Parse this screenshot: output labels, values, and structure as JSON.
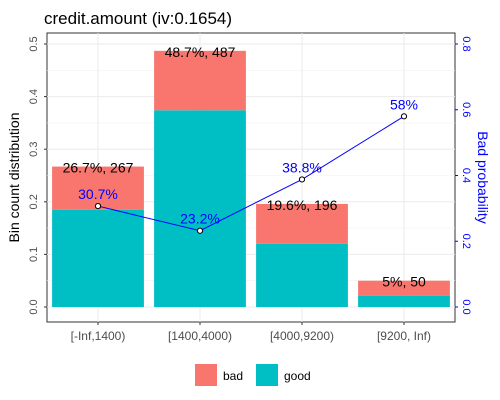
{
  "chart_data": {
    "type": "bar",
    "title": "credit.amount  (iv:0.1654)",
    "xlabel": "",
    "ylabel": "Bin count distribution",
    "y2label": "Bad probability",
    "categories": [
      "[-Inf,1400)",
      "[1400,4000)",
      "[4000,9200)",
      "[9200, Inf)"
    ],
    "ylim": [
      0,
      0.5
    ],
    "yticks": [
      "0.0",
      "0.1",
      "0.2",
      "0.3",
      "0.4",
      "0.5"
    ],
    "y2lim": [
      0,
      0.8
    ],
    "y2ticks": [
      "0.0",
      "0.2",
      "0.4",
      "0.6",
      "0.8"
    ],
    "stacked": true,
    "series": [
      {
        "name": "good",
        "color": "#00BFC4",
        "values": [
          0.185,
          0.374,
          0.12,
          0.021
        ]
      },
      {
        "name": "bad",
        "color": "#F8766D",
        "values": [
          0.082,
          0.113,
          0.076,
          0.029
        ]
      }
    ],
    "bar_labels": [
      "26.7%, 267",
      "48.7%, 487",
      "19.6%, 196",
      "5%, 50"
    ],
    "line": {
      "name": "Bad probability",
      "color": "#0000FF",
      "values": [
        0.307,
        0.232,
        0.388,
        0.58
      ],
      "labels": [
        "30.7%",
        "23.2%",
        "38.8%",
        "58%"
      ]
    },
    "grid": true,
    "legend": {
      "placement": "bottom",
      "items": [
        "bad",
        "good"
      ]
    }
  }
}
